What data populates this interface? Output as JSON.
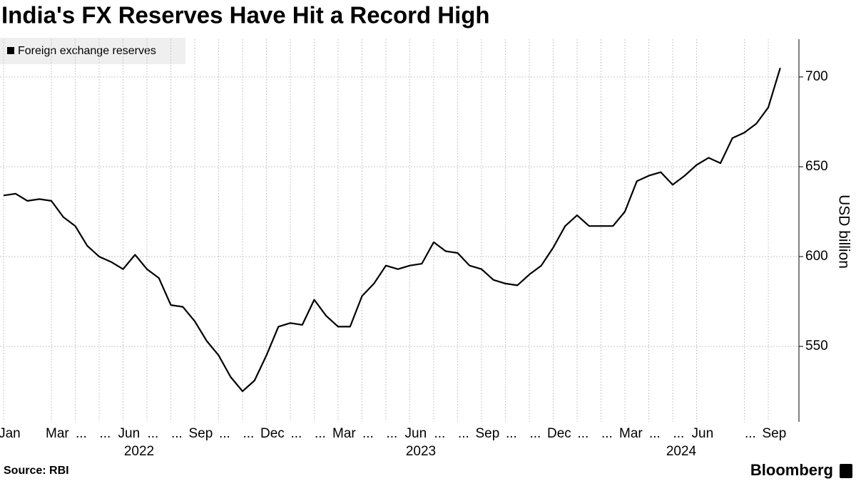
{
  "chart_data": {
    "type": "line",
    "title": "India's FX Reserves Have Hit a Record High",
    "y_axis_label": "USD billion",
    "source": "Source: RBI",
    "brand": "Bloomberg",
    "legend_position": "top-left",
    "grid": true,
    "categories": [
      "Jan",
      null,
      null,
      null,
      "Mar",
      null,
      "...",
      null,
      "...",
      null,
      "Jun",
      null,
      "...",
      null,
      "...",
      null,
      "Sep",
      null,
      "...",
      null,
      "...",
      null,
      "Dec",
      null,
      "...",
      null,
      "...",
      null,
      "Mar",
      null,
      "...",
      null,
      "...",
      null,
      "Jun",
      null,
      "...",
      null,
      "...",
      null,
      "Sep",
      null,
      "...",
      null,
      "...",
      null,
      "Dec",
      null,
      "...",
      null,
      "...",
      null,
      "Mar",
      null,
      "...",
      null,
      "...",
      null,
      "Jun",
      null,
      null,
      null,
      "...",
      null,
      "Sep",
      null
    ],
    "x_group_labels": [
      "2022",
      "2023",
      "2024"
    ],
    "series": [
      {
        "name": "Foreign exchange reserves",
        "color": "#000000",
        "values": [
          634,
          635,
          631,
          632,
          631,
          622,
          617,
          606,
          600,
          597,
          593,
          601,
          593,
          588,
          573,
          572,
          564,
          553,
          545,
          533,
          525,
          531,
          545,
          561,
          563,
          562,
          576,
          567,
          561,
          561,
          578,
          585,
          595,
          593,
          595,
          596,
          608,
          603,
          602,
          595,
          593,
          587,
          585,
          584,
          590,
          595,
          605,
          617,
          623,
          617,
          617,
          617,
          625,
          642,
          645,
          647,
          640,
          645,
          651,
          655,
          652,
          666,
          669,
          674,
          683,
          705
        ]
      }
    ],
    "ylim": [
      508,
      721
    ],
    "yticks": [
      550,
      600,
      650,
      700
    ]
  }
}
